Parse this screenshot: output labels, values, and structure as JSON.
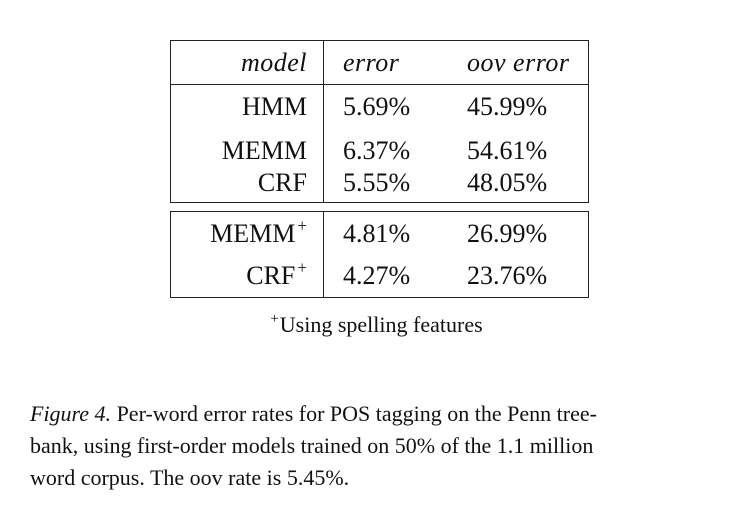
{
  "table": {
    "headers": {
      "model": "model",
      "error": "error",
      "oov_error": "oov error"
    },
    "top_rows": [
      {
        "model": "HMM",
        "plus": "",
        "error": "5.69%",
        "oov_error": "45.99%"
      },
      {
        "model": "MEMM",
        "plus": "",
        "error": "6.37%",
        "oov_error": "54.61%"
      },
      {
        "model": "CRF",
        "plus": "",
        "error": "5.55%",
        "oov_error": "48.05%"
      }
    ],
    "bottom_rows": [
      {
        "model": "MEMM",
        "plus": "+",
        "error": "4.81%",
        "oov_error": "26.99%"
      },
      {
        "model": "CRF",
        "plus": "+",
        "error": "4.27%",
        "oov_error": "23.76%"
      }
    ]
  },
  "footnote": {
    "marker": "+",
    "text": "Using spelling features"
  },
  "caption": {
    "label": "Figure 4.",
    "line1": " Per-word error rates for POS tagging on the Penn tree-",
    "line2": "bank, using first-order models trained on 50% of the 1.1 million",
    "line3": "word corpus. The oov rate is 5.45%."
  }
}
